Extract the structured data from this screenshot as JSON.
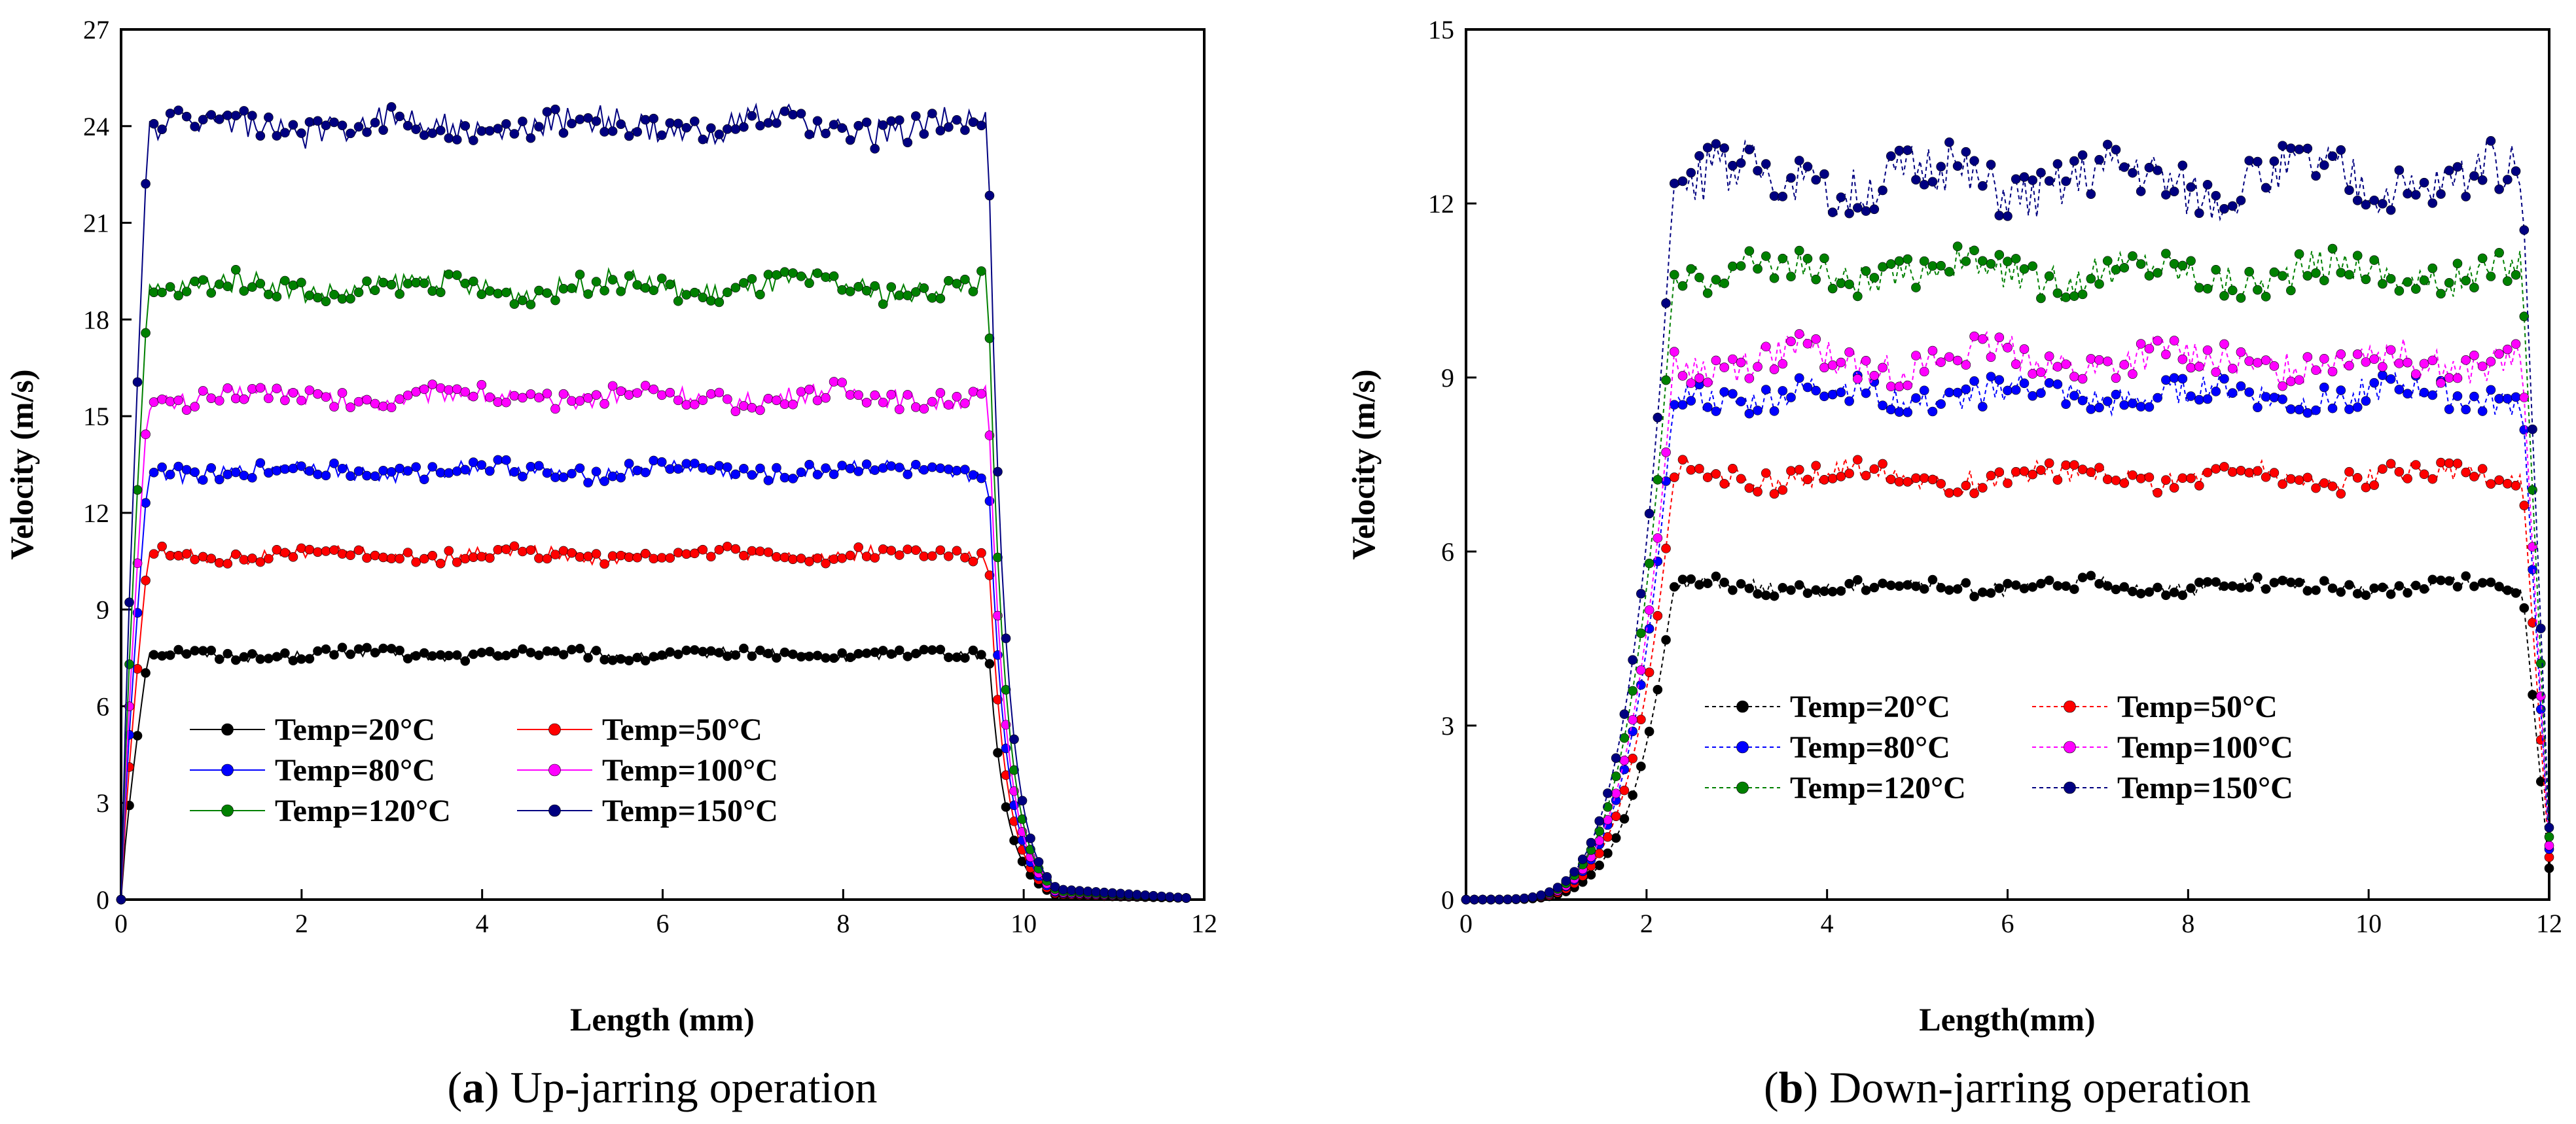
{
  "chart_data": [
    {
      "type": "line",
      "id": "a",
      "caption_letter": "a",
      "caption_prefix": "(",
      "caption_suffix": ") Up-jarring operation",
      "title": "",
      "xlabel": "Length (mm)",
      "ylabel": "Velocity (m/s)",
      "xlim": [
        0,
        12
      ],
      "ylim": [
        0,
        27
      ],
      "xticks": [
        0,
        2,
        4,
        6,
        8,
        10,
        12
      ],
      "yticks": [
        0,
        3,
        6,
        9,
        12,
        15,
        18,
        21,
        24,
        27
      ],
      "line_style": "solid",
      "legend": {
        "placement": "bottom-left",
        "columns": 2
      },
      "profile": {
        "x_start": 0.0,
        "x_rise_end": 0.3,
        "x_fall_start": 9.6,
        "x_fall_end": 10.4,
        "x_tail_end": 11.8
      },
      "series": [
        {
          "name": "Temp=20°C",
          "color": "#000000",
          "plateau": 7.6,
          "noise": 0.15
        },
        {
          "name": "Temp=50°C",
          "color": "#ff0000",
          "plateau": 10.7,
          "noise": 0.2
        },
        {
          "name": "Temp=80°C",
          "color": "#0000ff",
          "plateau": 13.3,
          "noise": 0.25
        },
        {
          "name": "Temp=100°C",
          "color": "#ff00ff",
          "plateau": 15.6,
          "noise": 0.3
        },
        {
          "name": "Temp=120°C",
          "color": "#008000",
          "plateau": 19.0,
          "noise": 0.35
        },
        {
          "name": "Temp=150°C",
          "color": "#000080",
          "plateau": 24.0,
          "noise": 0.45
        }
      ]
    },
    {
      "type": "line",
      "id": "b",
      "caption_letter": "b",
      "caption_prefix": "(",
      "caption_suffix": ") Down-jarring operation",
      "title": "",
      "xlabel": "Length(mm)",
      "ylabel": "Velocity (m/s)",
      "xlim": [
        0,
        12
      ],
      "ylim": [
        0,
        15
      ],
      "xticks": [
        0,
        2,
        4,
        6,
        8,
        10,
        12
      ],
      "yticks": [
        0,
        3,
        6,
        9,
        12,
        15
      ],
      "line_style": "dashed",
      "legend": {
        "placement": "lower-middle",
        "columns": 2
      },
      "profile": {
        "x_start": 0.0,
        "x_rise_end": 2.3,
        "x_fall_start": 11.7,
        "x_fall_end": 12.0,
        "x_tail_end": 12.0
      },
      "series": [
        {
          "name": "Temp=20°C",
          "color": "#000000",
          "plateau": 5.4,
          "noise": 0.12
        },
        {
          "name": "Temp=50°C",
          "color": "#ff0000",
          "plateau": 7.3,
          "noise": 0.2
        },
        {
          "name": "Temp=80°C",
          "color": "#0000ff",
          "plateau": 8.7,
          "noise": 0.25
        },
        {
          "name": "Temp=100°C",
          "color": "#ff00ff",
          "plateau": 9.3,
          "noise": 0.3
        },
        {
          "name": "Temp=120°C",
          "color": "#008000",
          "plateau": 10.8,
          "noise": 0.3
        },
        {
          "name": "Temp=150°C",
          "color": "#000080",
          "plateau": 12.4,
          "noise": 0.45
        }
      ]
    }
  ]
}
